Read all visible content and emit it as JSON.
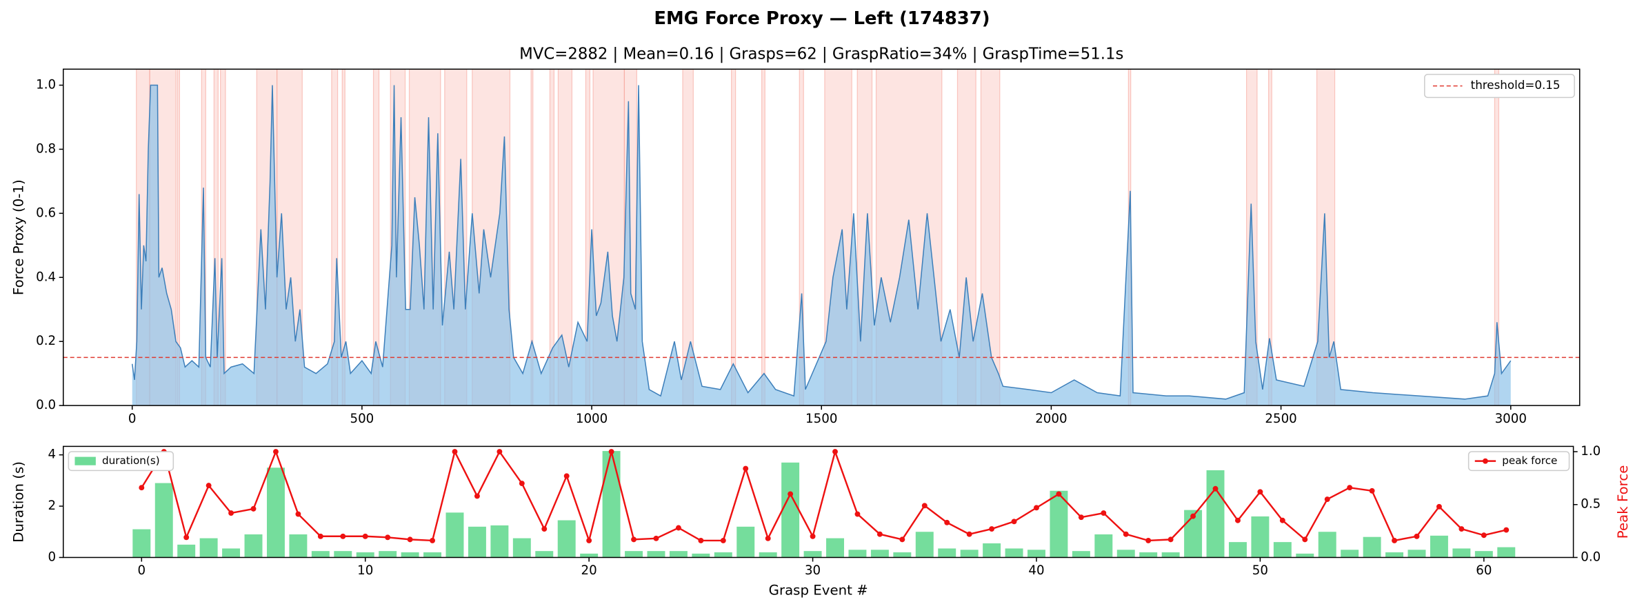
{
  "title": "EMG Force Proxy — Left (174837)",
  "chart_data": [
    {
      "type": "line",
      "title": "MVC=2882 | Mean=0.16 | Grasps=62 | GraspRatio=34% | GraspTime=51.1s",
      "ylabel": "Force Proxy (0-1)",
      "color": "#3d7fba",
      "fill_color": "#8fc3ea",
      "span_color": "#f7a59b",
      "xlim": [
        -150,
        3150
      ],
      "ylim": [
        0,
        1.05
      ],
      "xticks": [
        0,
        500,
        1000,
        1500,
        2000,
        2500,
        3000
      ],
      "yticks": [
        {
          "value": 0,
          "label": "0.0"
        },
        {
          "value": 0.2,
          "label": "0.2"
        },
        {
          "value": 0.4,
          "label": "0.4"
        },
        {
          "value": 0.6,
          "label": "0.6"
        },
        {
          "value": 0.8,
          "label": "0.8"
        },
        {
          "value": 1,
          "label": "1.0"
        }
      ],
      "threshold": {
        "value": 0.15,
        "label": "threshold=0.15",
        "color": "#e03a30"
      },
      "legend": "upper right",
      "spans": [
        [
          9,
          38
        ],
        [
          38,
          95
        ],
        [
          98,
          103
        ],
        [
          151,
          160
        ],
        [
          178,
          187
        ],
        [
          192,
          203
        ],
        [
          271,
          315
        ],
        [
          315,
          370
        ],
        [
          434,
          447
        ],
        [
          457,
          463
        ],
        [
          525,
          537
        ],
        [
          562,
          594
        ],
        [
          603,
          671
        ],
        [
          680,
          728
        ],
        [
          740,
          822
        ],
        [
          868,
          872
        ],
        [
          909,
          918
        ],
        [
          927,
          957
        ],
        [
          987,
          996
        ],
        [
          1003,
          1071
        ],
        [
          1071,
          1098
        ],
        [
          1198,
          1221
        ],
        [
          1304,
          1313
        ],
        [
          1370,
          1377
        ],
        [
          1452,
          1461
        ],
        [
          1507,
          1566
        ],
        [
          1578,
          1610
        ],
        [
          1619,
          1762
        ],
        [
          1796,
          1836
        ],
        [
          1847,
          1888
        ],
        [
          2168,
          2173
        ],
        [
          2425,
          2448
        ],
        [
          2473,
          2480
        ],
        [
          2578,
          2617
        ],
        [
          2965,
          2974
        ]
      ],
      "x": [
        0,
        5,
        10,
        15,
        20,
        25,
        30,
        35,
        40,
        55,
        58,
        65,
        75,
        85,
        95,
        105,
        115,
        130,
        145,
        155,
        160,
        170,
        180,
        185,
        195,
        200,
        215,
        240,
        265,
        280,
        290,
        300,
        305,
        315,
        325,
        335,
        345,
        355,
        365,
        375,
        400,
        425,
        440,
        445,
        455,
        465,
        475,
        500,
        520,
        530,
        545,
        565,
        570,
        575,
        585,
        595,
        605,
        615,
        625,
        635,
        645,
        655,
        665,
        675,
        690,
        700,
        715,
        725,
        740,
        755,
        765,
        780,
        800,
        810,
        820,
        830,
        850,
        870,
        890,
        915,
        935,
        950,
        970,
        990,
        1000,
        1010,
        1020,
        1035,
        1045,
        1055,
        1070,
        1080,
        1085,
        1095,
        1102,
        1110,
        1125,
        1150,
        1180,
        1195,
        1215,
        1240,
        1280,
        1308,
        1340,
        1375,
        1400,
        1440,
        1457,
        1465,
        1510,
        1525,
        1545,
        1555,
        1570,
        1585,
        1600,
        1615,
        1630,
        1650,
        1670,
        1690,
        1710,
        1730,
        1745,
        1760,
        1780,
        1800,
        1815,
        1830,
        1850,
        1870,
        1885,
        1895,
        1950,
        2000,
        2050,
        2100,
        2150,
        2172,
        2178,
        2250,
        2300,
        2380,
        2420,
        2435,
        2445,
        2460,
        2475,
        2490,
        2550,
        2580,
        2595,
        2605,
        2615,
        2630,
        2700,
        2800,
        2900,
        2950,
        2965,
        2970,
        2980,
        3000
      ],
      "values": [
        0.13,
        0.08,
        0.2,
        0.66,
        0.3,
        0.5,
        0.45,
        0.8,
        1.0,
        1.0,
        0.4,
        0.43,
        0.35,
        0.3,
        0.2,
        0.18,
        0.12,
        0.14,
        0.12,
        0.68,
        0.15,
        0.12,
        0.46,
        0.15,
        0.46,
        0.1,
        0.12,
        0.13,
        0.1,
        0.55,
        0.3,
        0.7,
        1.0,
        0.4,
        0.6,
        0.3,
        0.4,
        0.2,
        0.3,
        0.12,
        0.1,
        0.13,
        0.2,
        0.46,
        0.15,
        0.2,
        0.1,
        0.14,
        0.1,
        0.2,
        0.12,
        0.5,
        1.0,
        0.4,
        0.9,
        0.3,
        0.3,
        0.65,
        0.5,
        0.3,
        0.9,
        0.3,
        0.85,
        0.25,
        0.48,
        0.3,
        0.77,
        0.3,
        0.6,
        0.35,
        0.55,
        0.4,
        0.6,
        0.84,
        0.3,
        0.15,
        0.1,
        0.2,
        0.1,
        0.18,
        0.22,
        0.12,
        0.26,
        0.2,
        0.55,
        0.28,
        0.32,
        0.48,
        0.28,
        0.2,
        0.4,
        0.95,
        0.35,
        0.3,
        1.0,
        0.2,
        0.05,
        0.03,
        0.2,
        0.08,
        0.2,
        0.06,
        0.05,
        0.13,
        0.04,
        0.1,
        0.05,
        0.03,
        0.35,
        0.05,
        0.2,
        0.4,
        0.55,
        0.3,
        0.6,
        0.2,
        0.6,
        0.25,
        0.4,
        0.26,
        0.4,
        0.58,
        0.3,
        0.6,
        0.4,
        0.2,
        0.3,
        0.15,
        0.4,
        0.2,
        0.35,
        0.15,
        0.1,
        0.06,
        0.05,
        0.04,
        0.08,
        0.04,
        0.03,
        0.67,
        0.04,
        0.03,
        0.03,
        0.02,
        0.04,
        0.63,
        0.2,
        0.05,
        0.21,
        0.08,
        0.06,
        0.2,
        0.6,
        0.15,
        0.2,
        0.05,
        0.04,
        0.03,
        0.02,
        0.03,
        0.1,
        0.26,
        0.1,
        0.14
      ]
    },
    {
      "type": "bar",
      "xlabel": "Grasp Event #",
      "ylabel": "Duration (s)",
      "y2label": "Peak Force",
      "xlim": [
        -3.5,
        64
      ],
      "ylim": [
        0,
        4.33
      ],
      "y2lim": [
        0,
        1.05
      ],
      "xticks": [
        0,
        10,
        20,
        30,
        40,
        50,
        60
      ],
      "yticks": [
        0,
        2,
        4
      ],
      "y2ticks": [
        {
          "value": 0,
          "label": "0.0"
        },
        {
          "value": 0.5,
          "label": "0.5"
        },
        {
          "value": 1,
          "label": "1.0"
        }
      ],
      "series": [
        {
          "name": "duration(s)",
          "type": "bar",
          "color": "#6edb97",
          "legend": "upper left",
          "values": [
            1.1,
            2.9,
            0.5,
            0.75,
            0.35,
            0.9,
            3.5,
            0.9,
            0.25,
            0.25,
            0.2,
            0.25,
            0.2,
            0.2,
            1.75,
            1.2,
            1.25,
            0.75,
            0.25,
            1.45,
            0.15,
            4.15,
            0.25,
            0.25,
            0.25,
            0.15,
            0.2,
            1.2,
            0.2,
            3.7,
            0.25,
            0.75,
            0.3,
            0.3,
            0.2,
            1.0,
            0.35,
            0.3,
            0.55,
            0.35,
            0.3,
            2.6,
            0.25,
            0.9,
            0.3,
            0.2,
            0.2,
            1.85,
            3.4,
            0.6,
            1.6,
            0.6,
            0.15,
            1.0,
            0.3,
            0.8,
            0.2,
            0.3,
            0.85,
            0.35,
            0.25,
            0.4
          ]
        },
        {
          "name": "peak force",
          "type": "line",
          "axis": "y2",
          "color": "#ee1111",
          "legend": "upper right",
          "values": [
            0.66,
            1.0,
            0.19,
            0.68,
            0.42,
            0.46,
            1.0,
            0.41,
            0.2,
            0.2,
            0.2,
            0.19,
            0.17,
            0.16,
            1.0,
            0.58,
            1.0,
            0.7,
            0.27,
            0.77,
            0.16,
            1.0,
            0.17,
            0.18,
            0.28,
            0.16,
            0.16,
            0.84,
            0.18,
            0.6,
            0.2,
            1.0,
            0.41,
            0.22,
            0.17,
            0.49,
            0.33,
            0.22,
            0.27,
            0.34,
            0.47,
            0.6,
            0.38,
            0.42,
            0.22,
            0.16,
            0.17,
            0.39,
            0.65,
            0.35,
            0.62,
            0.35,
            0.17,
            0.55,
            0.66,
            0.63,
            0.16,
            0.2,
            0.48,
            0.27,
            0.21,
            0.26
          ]
        }
      ]
    }
  ]
}
